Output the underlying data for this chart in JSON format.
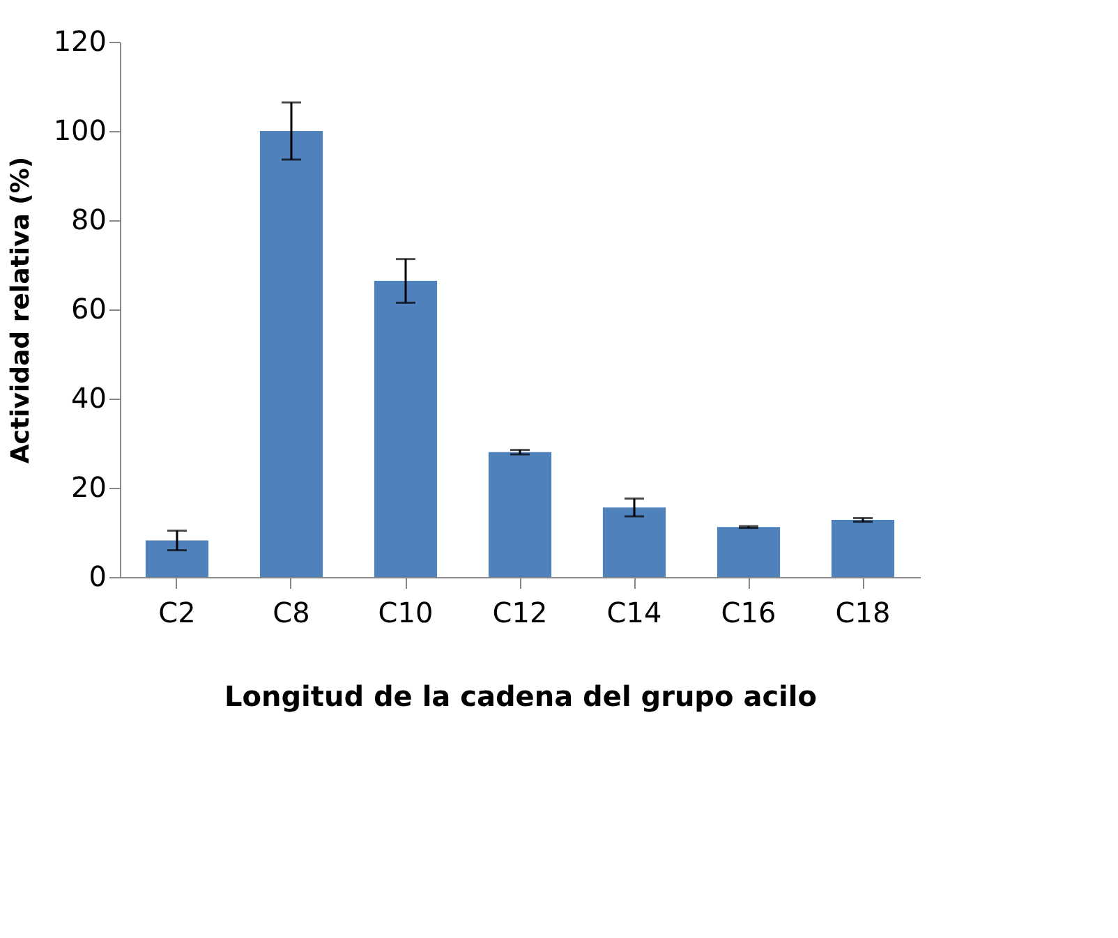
{
  "chart_data": {
    "type": "bar",
    "xlabel": "Longitud de la cadena del grupo acilo",
    "ylabel": "Actividad relativa (%)",
    "categories": [
      "C2",
      "C8",
      "C10",
      "C12",
      "C14",
      "C16",
      "C18"
    ],
    "values": [
      8.2,
      100,
      66.4,
      28.0,
      15.6,
      11.2,
      12.8
    ],
    "errors": [
      2.2,
      6.4,
      4.9,
      0.5,
      2.0,
      0.2,
      0.4
    ],
    "color": "#4f81bd",
    "ylim": [
      0,
      120
    ],
    "yticks": [
      0,
      20,
      40,
      60,
      80,
      100,
      120
    ],
    "grid": false
  }
}
